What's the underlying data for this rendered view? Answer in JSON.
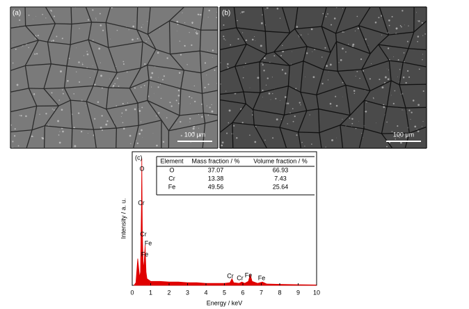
{
  "panels": [
    {
      "label": "(a)",
      "scale_bar": "100 μm"
    },
    {
      "label": "(b)",
      "scale_bar": "100 μm"
    }
  ],
  "chart_data": {
    "type": "area",
    "panel_label": "(c)",
    "x_label": "Energy / keV",
    "y_label": "Intensity / a. u.",
    "x": [
      0.1,
      0.2,
      0.3,
      0.4,
      0.45,
      0.5,
      0.52,
      0.55,
      0.6,
      0.65,
      0.7,
      0.75,
      0.8,
      0.9,
      1.0,
      1.5,
      2.0,
      2.5,
      3.0,
      3.5,
      4.0,
      4.5,
      5.0,
      5.3,
      5.41,
      5.5,
      5.8,
      5.95,
      6.1,
      6.3,
      6.4,
      6.5,
      6.8,
      7.06,
      7.3,
      8.0,
      9.0,
      10.0
    ],
    "values": [
      0,
      2,
      20,
      6,
      10,
      60,
      95,
      40,
      12,
      18,
      30,
      10,
      5,
      4,
      3,
      3,
      2.5,
      2.5,
      2,
      2,
      1.5,
      1.5,
      1.5,
      2,
      5,
      2,
      1.5,
      2.5,
      1.5,
      3,
      8,
      3,
      1.5,
      2.5,
      1,
      0.8,
      0.5,
      0.3
    ],
    "color": "#e00000",
    "xlim": [
      0,
      10
    ],
    "xticks": [
      0,
      1,
      2,
      3,
      4,
      5,
      6,
      7,
      8,
      9,
      10
    ],
    "ylim": [
      0,
      100
    ],
    "peak_labels": [
      "O",
      "Cr",
      "Cr",
      "Fe",
      "Fe",
      "Cr",
      "Cr",
      "Fe",
      "Fe"
    ],
    "table": {
      "header": [
        "Element",
        "Mass fraction / %",
        "Volume fraction / %"
      ],
      "rows": [
        [
          "O",
          37.07,
          66.93
        ],
        [
          "Cr",
          13.38,
          7.43
        ],
        [
          "Fe",
          49.56,
          25.64
        ]
      ]
    }
  }
}
